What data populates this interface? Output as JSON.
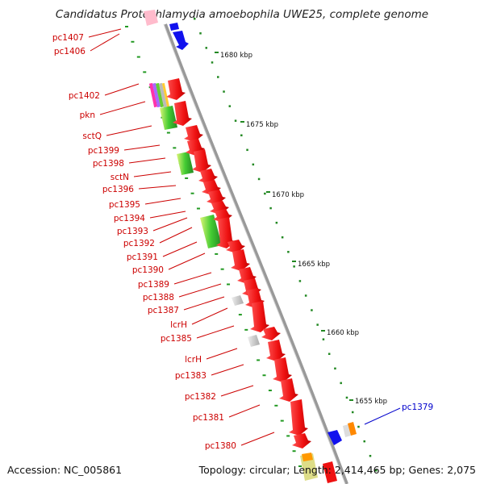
{
  "header": {
    "title": "Candidatus Protochlamydia amoebophila UWE25, complete genome"
  },
  "footer": {
    "accession": "Accession: NC_005861",
    "topology": "Topology: circular; Length: 2,414,465 bp; Genes: 2,075"
  },
  "scale_ticks": [
    "1680 kbp",
    "1675 kbp",
    "1670 kbp",
    "1665 kbp",
    "1660 kbp",
    "1655 kbp"
  ],
  "gene_labels": [
    "pc1407",
    "pc1406",
    "pc1402",
    "pkn",
    "sctQ",
    "pc1399",
    "pc1398",
    "sctN",
    "pc1396",
    "pc1395",
    "pc1394",
    "pc1393",
    "pc1392",
    "pc1391",
    "pc1390",
    "pc1389",
    "pc1388",
    "pc1387",
    "lcrH",
    "pc1385",
    "lcrH",
    "pc1383",
    "pc1382",
    "pc1381",
    "pc1380",
    "pc1379"
  ],
  "colors": {
    "gene_red": "#ee1111",
    "gene_blue": "#1111ee",
    "label_red": "#cc0000",
    "label_blue": "#0000cc",
    "backbone": "#888888",
    "dots": "#118811"
  }
}
